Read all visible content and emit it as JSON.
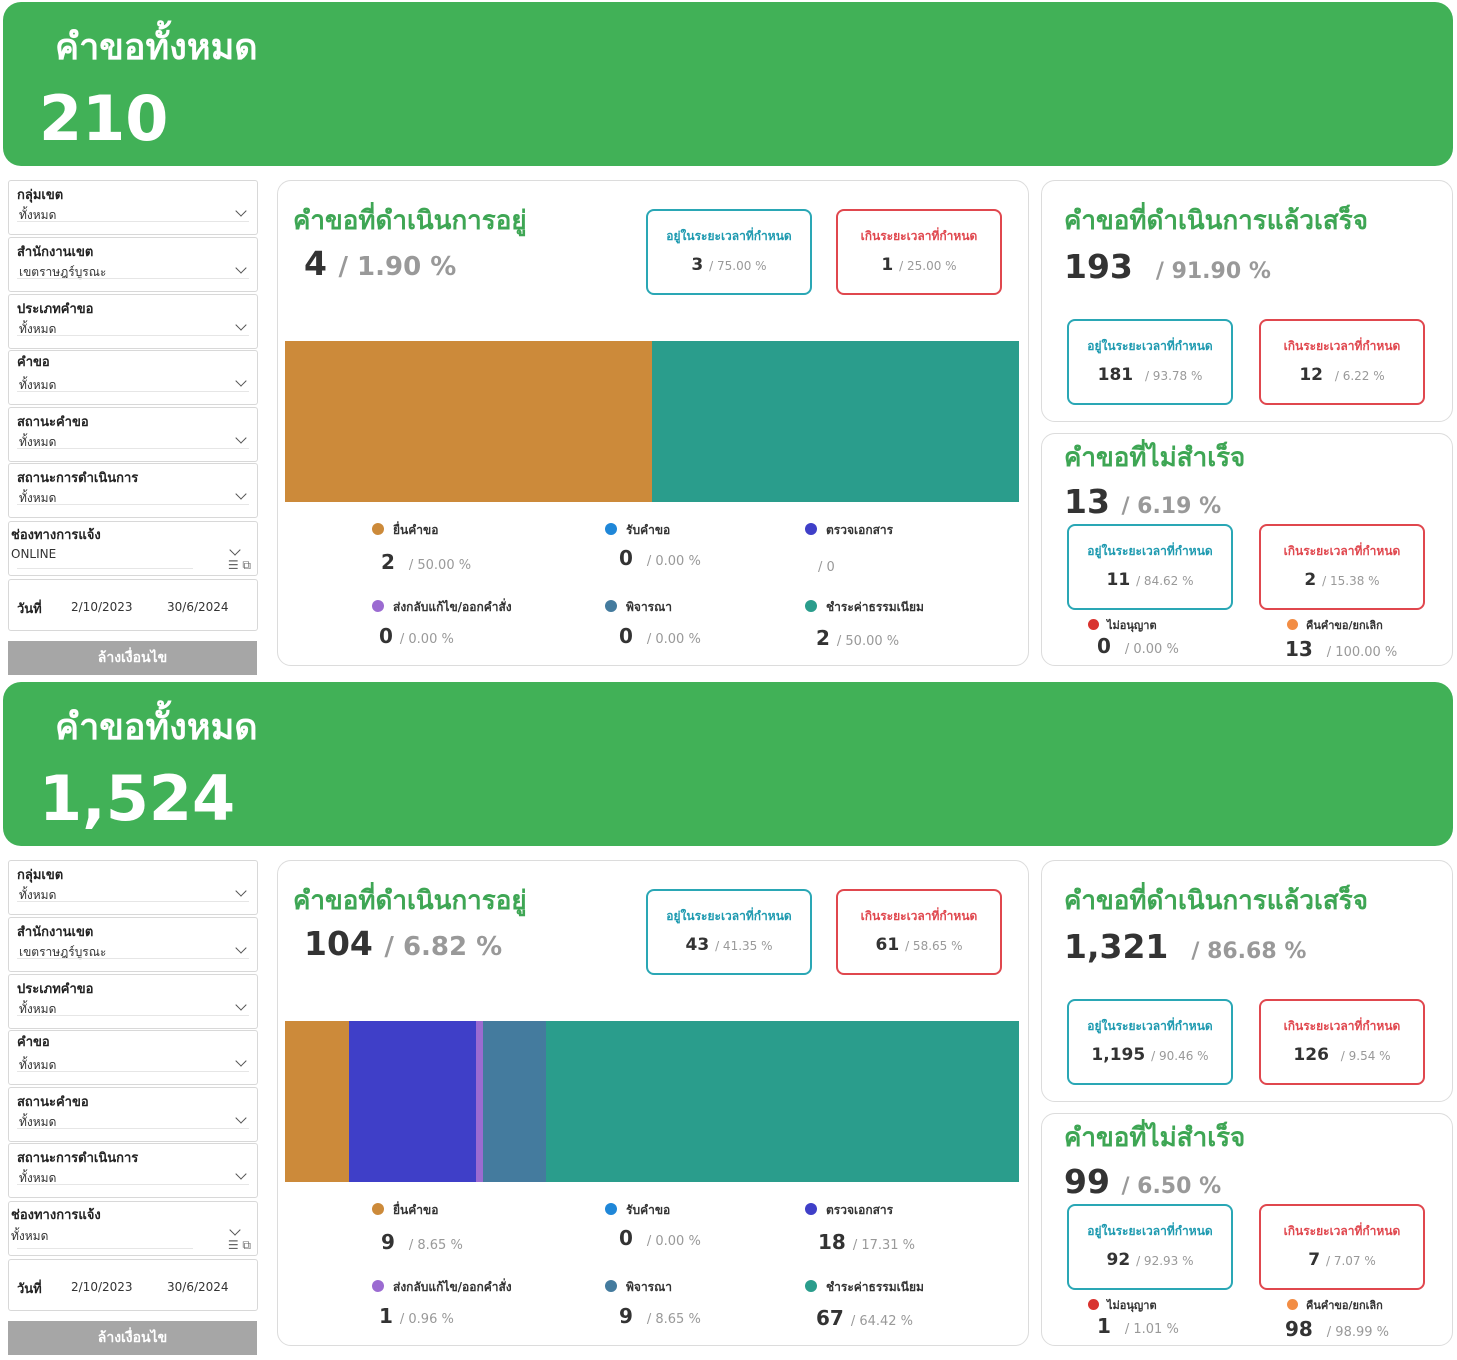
{
  "colors": {
    "green": "#41b157",
    "ok": "#2aa7b5",
    "late": "#e0474e"
  },
  "dashboards": [
    {
      "total_title": "คำขอทั้งหมด",
      "total_value": "210",
      "filters": [
        {
          "label": "กลุ่มเขต",
          "value": "ทั้งหมด"
        },
        {
          "label": "สำนักงานเขต",
          "value": "เขตราษฎร์บูรณะ"
        },
        {
          "label": "ประเภทคำขอ",
          "value": "ทั้งหมด"
        },
        {
          "label": "คำขอ",
          "value": "ทั้งหมด"
        },
        {
          "label": "สถานะคำขอ",
          "value": "ทั้งหมด"
        },
        {
          "label": "สถานะการดำเนินการ",
          "value": "ทั้งหมด"
        },
        {
          "label": "ช่องทางการแจ้ง",
          "value": "ONLINE"
        }
      ],
      "date_label": "วันที่",
      "date_from": "2/10/2023",
      "date_to": "30/6/2024",
      "clear_label": "ล้างเงื่อนไข",
      "inprogress": {
        "title": "คำขอที่ดำเนินการอยู่",
        "value": "4",
        "pct": "/ 1.90 %",
        "ontime": {
          "label": "อยู่ในระยะเวลาที่กำหนด",
          "value": "3",
          "pct": "/ 75.00 %"
        },
        "late": {
          "label": "เกินระยะเวลาที่กำหนด",
          "value": "1",
          "pct": "/ 25.00 %"
        },
        "segments": [
          {
            "name": "ยื่นคำขอ",
            "value": 2,
            "color": "#cc8a3a"
          },
          {
            "name": "รับคำขอ",
            "value": 0,
            "color": "#1f87d8"
          },
          {
            "name": "ตรวจเอกสาร",
            "value": 0,
            "color": "#3f3fc8"
          },
          {
            "name": "ส่งกลับแก้ไข/ออกคำสั่ง",
            "value": 0,
            "color": "#9b6bd1"
          },
          {
            "name": "พิจารณา",
            "value": 0,
            "color": "#447b9e"
          },
          {
            "name": "ชำระค่าธรรมเนียม",
            "value": 2,
            "color": "#2a9d8c"
          }
        ],
        "legend": [
          {
            "name": "ยื่นคำขอ",
            "value": "2",
            "pct": "/ 50.00 %"
          },
          {
            "name": "รับคำขอ",
            "value": "0",
            "pct": "/ 0.00 %"
          },
          {
            "name": "ตรวจเอกสาร",
            "value": "",
            "pct": "/ 0"
          },
          {
            "name": "ส่งกลับแก้ไข/ออกคำสั่ง",
            "value": "0",
            "pct": "/ 0.00 %"
          },
          {
            "name": "พิจารณา",
            "value": "0",
            "pct": "/ 0.00 %"
          },
          {
            "name": "ชำระค่าธรรมเนียม",
            "value": "2",
            "pct": "/ 50.00 %"
          }
        ]
      },
      "done": {
        "title": "คำขอที่ดำเนินการแล้วเสร็จ",
        "value": "193",
        "pct": "/ 91.90 %",
        "ontime": {
          "label": "อยู่ในระยะเวลาที่กำหนด",
          "value": "181",
          "pct": "/ 93.78 %"
        },
        "late": {
          "label": "เกินระยะเวลาที่กำหนด",
          "value": "12",
          "pct": "/ 6.22 %"
        }
      },
      "failed": {
        "title": "คำขอที่ไม่สำเร็จ",
        "value": "13",
        "pct": "/ 6.19 %",
        "ontime": {
          "label": "อยู่ในระยะเวลาที่กำหนด",
          "value": "11",
          "pct": "/ 84.62 %"
        },
        "late": {
          "label": "เกินระยะเวลาที่กำหนด",
          "value": "2",
          "pct": "/ 15.38 %"
        },
        "reject": {
          "name": "ไม่อนุญาต",
          "value": "0",
          "pct": "/ 0.00 %",
          "color": "#d9332f"
        },
        "cancel": {
          "name": "คืนคำขอ/ยกเลิก",
          "value": "13",
          "pct": "/ 100.00 %",
          "color": "#f28d45"
        }
      }
    },
    {
      "total_title": "คำขอทั้งหมด",
      "total_value": "1,524",
      "filters": [
        {
          "label": "กลุ่มเขต",
          "value": "ทั้งหมด"
        },
        {
          "label": "สำนักงานเขต",
          "value": "เขตราษฎร์บูรณะ"
        },
        {
          "label": "ประเภทคำขอ",
          "value": "ทั้งหมด"
        },
        {
          "label": "คำขอ",
          "value": "ทั้งหมด"
        },
        {
          "label": "สถานะคำขอ",
          "value": "ทั้งหมด"
        },
        {
          "label": "สถานะการดำเนินการ",
          "value": "ทั้งหมด"
        },
        {
          "label": "ช่องทางการแจ้ง",
          "value": "ทั้งหมด"
        }
      ],
      "date_label": "วันที่",
      "date_from": "2/10/2023",
      "date_to": "30/6/2024",
      "clear_label": "ล้างเงื่อนไข",
      "inprogress": {
        "title": "คำขอที่ดำเนินการอยู่",
        "value": "104",
        "pct": "/ 6.82 %",
        "ontime": {
          "label": "อยู่ในระยะเวลาที่กำหนด",
          "value": "43",
          "pct": "/ 41.35 %"
        },
        "late": {
          "label": "เกินระยะเวลาที่กำหนด",
          "value": "61",
          "pct": "/ 58.65 %"
        },
        "segments": [
          {
            "name": "ยื่นคำขอ",
            "value": 9,
            "color": "#cc8a3a"
          },
          {
            "name": "รับคำขอ",
            "value": 0,
            "color": "#1f87d8"
          },
          {
            "name": "ตรวจเอกสาร",
            "value": 18,
            "color": "#3f3fc8"
          },
          {
            "name": "ส่งกลับแก้ไข/ออกคำสั่ง",
            "value": 1,
            "color": "#9b6bd1"
          },
          {
            "name": "พิจารณา",
            "value": 9,
            "color": "#447b9e"
          },
          {
            "name": "ชำระค่าธรรมเนียม",
            "value": 67,
            "color": "#2a9d8c"
          }
        ],
        "legend": [
          {
            "name": "ยื่นคำขอ",
            "value": "9",
            "pct": "/ 8.65 %"
          },
          {
            "name": "รับคำขอ",
            "value": "0",
            "pct": "/ 0.00 %"
          },
          {
            "name": "ตรวจเอกสาร",
            "value": "18",
            "pct": "/ 17.31 %"
          },
          {
            "name": "ส่งกลับแก้ไข/ออกคำสั่ง",
            "value": "1",
            "pct": "/ 0.96 %"
          },
          {
            "name": "พิจารณา",
            "value": "9",
            "pct": "/ 8.65 %"
          },
          {
            "name": "ชำระค่าธรรมเนียม",
            "value": "67",
            "pct": "/ 64.42 %"
          }
        ]
      },
      "done": {
        "title": "คำขอที่ดำเนินการแล้วเสร็จ",
        "value": "1,321",
        "pct": "/ 86.68 %",
        "ontime": {
          "label": "อยู่ในระยะเวลาที่กำหนด",
          "value": "1,195",
          "pct": "/ 90.46 %"
        },
        "late": {
          "label": "เกินระยะเวลาที่กำหนด",
          "value": "126",
          "pct": "/ 9.54 %"
        }
      },
      "failed": {
        "title": "คำขอที่ไม่สำเร็จ",
        "value": "99",
        "pct": "/ 6.50 %",
        "ontime": {
          "label": "อยู่ในระยะเวลาที่กำหนด",
          "value": "92",
          "pct": "/ 92.93 %"
        },
        "late": {
          "label": "เกินระยะเวลาที่กำหนด",
          "value": "7",
          "pct": "/ 7.07 %"
        },
        "reject": {
          "name": "ไม่อนุญาต",
          "value": "1",
          "pct": "/ 1.01 %",
          "color": "#d9332f"
        },
        "cancel": {
          "name": "คืนคำขอ/ยกเลิก",
          "value": "98",
          "pct": "/ 98.99 %",
          "color": "#f28d45"
        }
      }
    }
  ]
}
